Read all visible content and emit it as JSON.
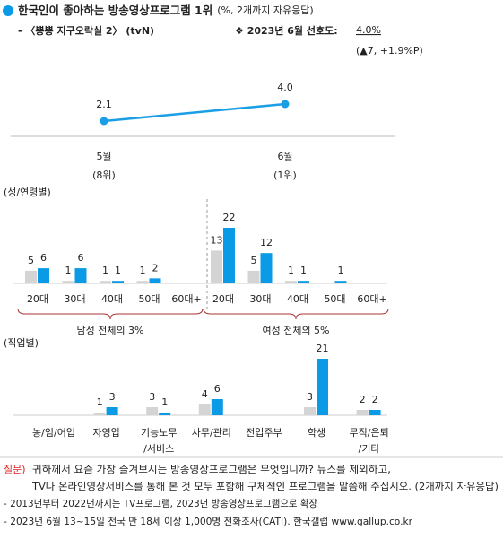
{
  "header": {
    "title": "한국인이 좋아하는 방송영상프로그램 1위",
    "title_note": "(%, 2개까지 자유응답)",
    "program": "- 〈뿅뿅 지구오락실 2〉 (tvN)",
    "preference_label": "❖  2023년 6월 선호도:",
    "preference_value": "4.0%",
    "change": "(▲7, +1.9%P)"
  },
  "chart_data": [
    {
      "type": "line",
      "categories": [
        "5월",
        "6월"
      ],
      "sublabels": [
        "(8위)",
        "(1위)"
      ],
      "values": [
        2.1,
        4.0
      ],
      "value_labels": [
        "2.1",
        "4.0"
      ],
      "color": "#1a9ee6",
      "ylim": [
        0,
        6
      ]
    },
    {
      "type": "bar",
      "title": "(성/연령별)",
      "categories": [
        "20대",
        "30대",
        "40대",
        "50대",
        "60대+",
        "20대",
        "30대",
        "40대",
        "50대",
        "60대+"
      ],
      "group_labels": [
        "남성 전체의 3%",
        "여성 전체의 5%"
      ],
      "series": [
        {
          "color": "#d4d4d4",
          "values": [
            5,
            1,
            1,
            1,
            null,
            13,
            5,
            1,
            null,
            null
          ]
        },
        {
          "color": "#0b9be6",
          "values": [
            6,
            6,
            1,
            2,
            null,
            22,
            12,
            1,
            1,
            null
          ]
        }
      ],
      "ylim": [
        0,
        22
      ]
    },
    {
      "type": "bar",
      "title": "(직업별)",
      "categories": [
        [
          "농/임/어업"
        ],
        [
          "자영업"
        ],
        [
          "기능노무",
          "/서비스"
        ],
        [
          "사무/관리"
        ],
        [
          "전업주부"
        ],
        [
          "학생"
        ],
        [
          "무직/은퇴",
          "/기타"
        ]
      ],
      "series": [
        {
          "color": "#d4d4d4",
          "values": [
            null,
            1,
            3,
            4,
            null,
            3,
            2
          ]
        },
        {
          "color": "#0b9be6",
          "values": [
            null,
            3,
            1,
            6,
            null,
            21,
            2
          ]
        }
      ],
      "ylim": [
        0,
        21
      ]
    }
  ],
  "footer": {
    "question_label": "질문)",
    "question": [
      "귀하께서 요즘 가장 즐겨보시는 방송영상프로그램은 무엇입니까? 뉴스를 제외하고,",
      "TV나 온라인영상서비스를 통해 본 것 모두 포함해 구체적인 프로그램을 말씀해 주십시오. (2개까지 자유응답)"
    ],
    "notes": [
      "- 2013년부터 2022년까지는 TV프로그램, 2023년 방송영상프로그램으로 확장",
      "- 2023년 6월 13~15일 전국 만 18세 이상 1,000명 전화조사(CATI). 한국갤럽 www.gallup.co.kr"
    ]
  }
}
